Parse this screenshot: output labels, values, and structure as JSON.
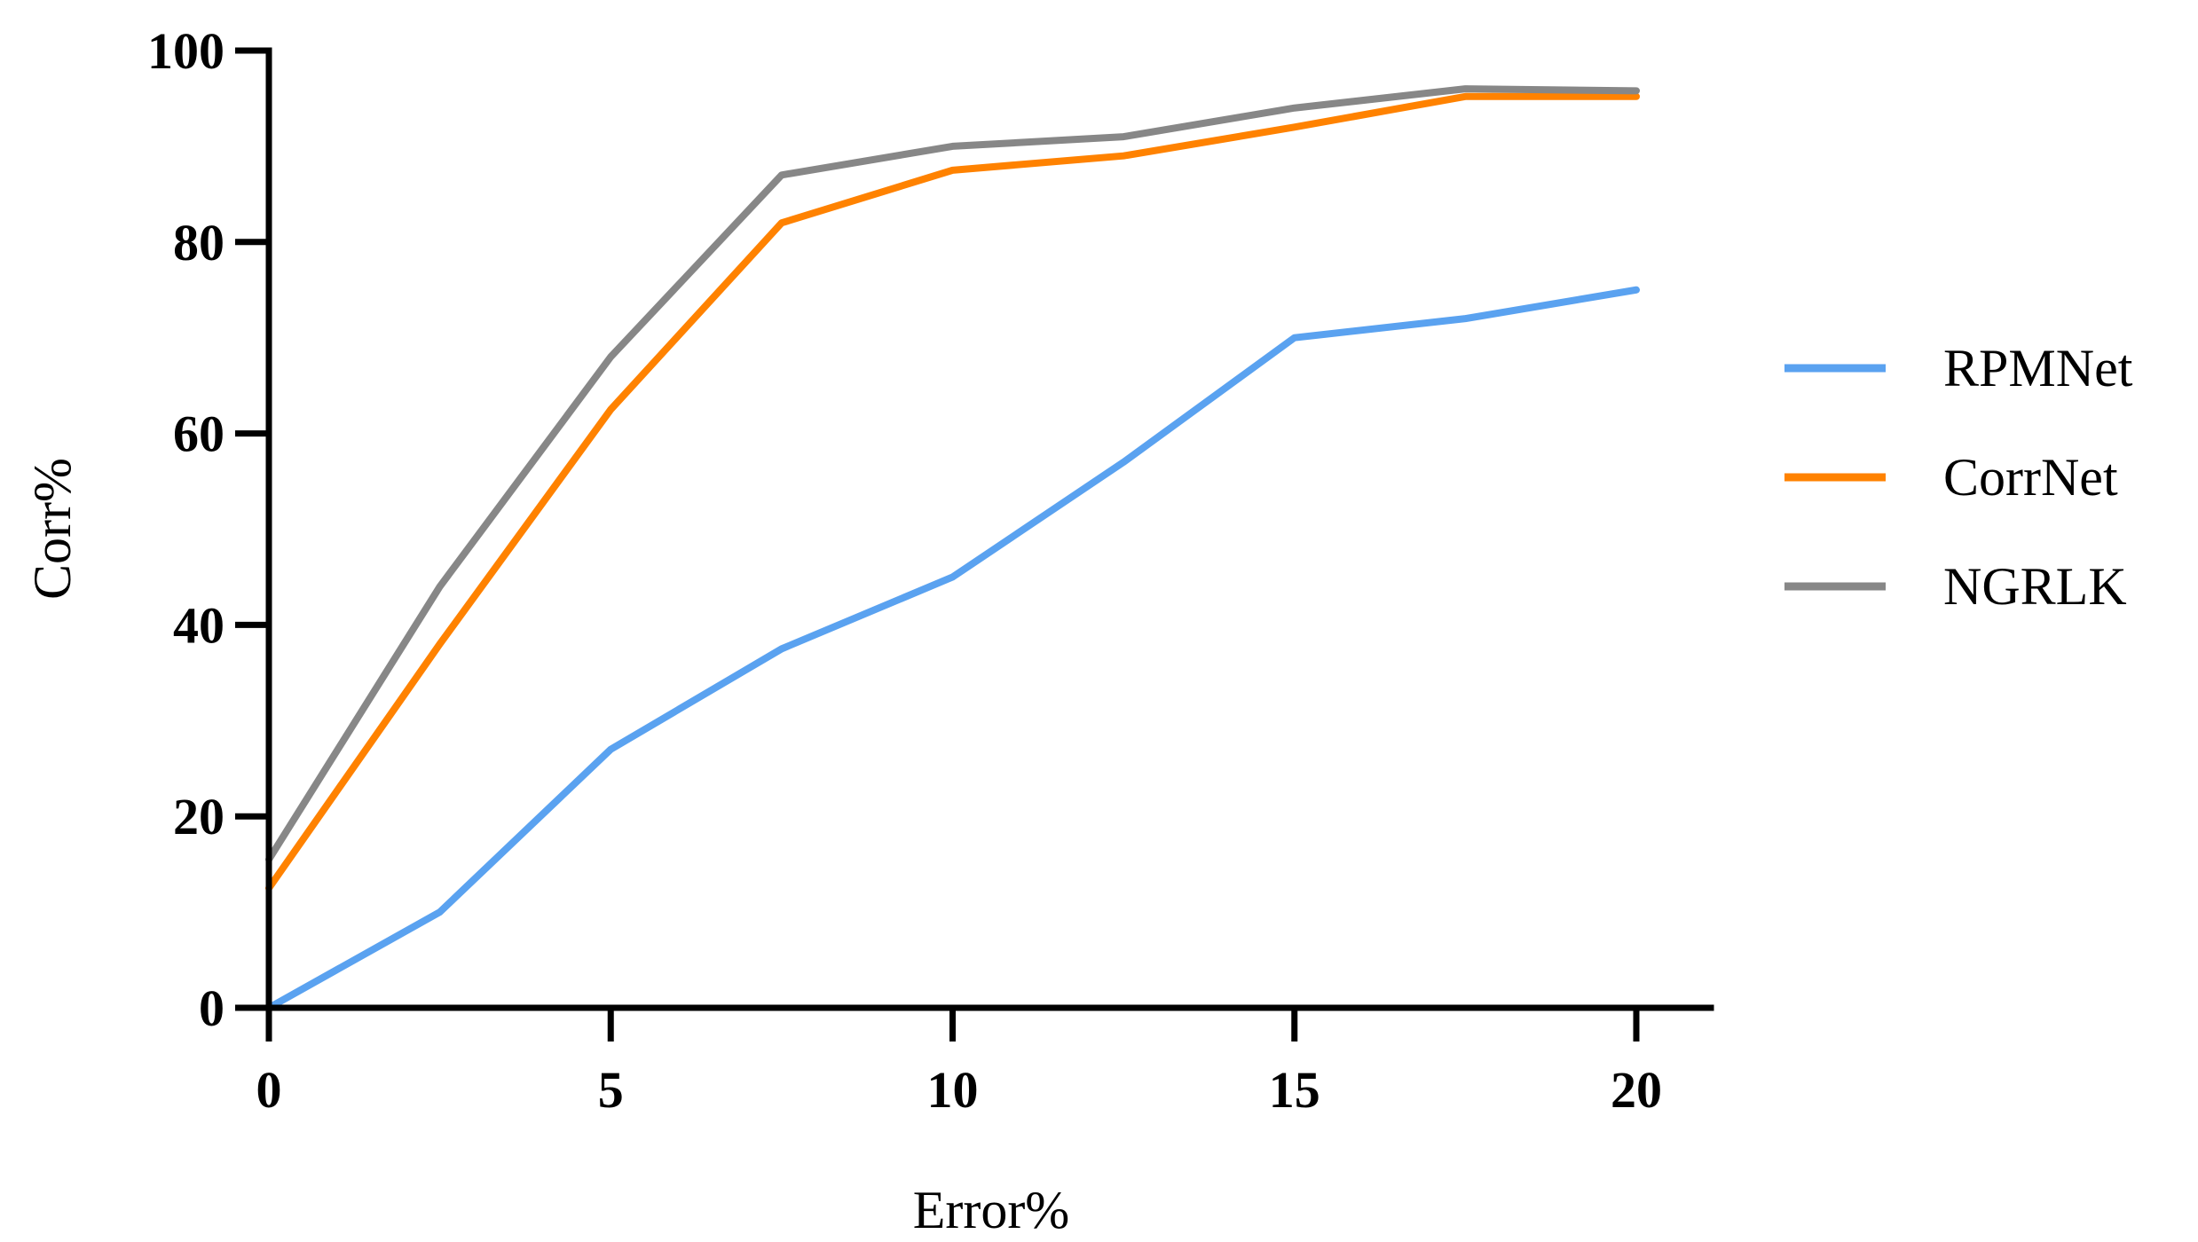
{
  "chart_data": {
    "type": "line",
    "title": "",
    "xlabel": "Error%",
    "ylabel": "Corr%",
    "xlim": [
      0,
      20
    ],
    "ylim": [
      0,
      100
    ],
    "xticks": [
      "0",
      "5",
      "10",
      "15",
      "20"
    ],
    "yticks": [
      "0",
      "20",
      "40",
      "60",
      "80",
      "100"
    ],
    "x": [
      0,
      2.5,
      5,
      7.5,
      10,
      12.5,
      15,
      17.5,
      20
    ],
    "grid": false,
    "legend_position": "right",
    "series": [
      {
        "name": "RPMNet",
        "color": "#5aa2f0",
        "values": [
          0,
          10,
          27,
          37.5,
          45,
          57,
          70,
          72,
          75
        ]
      },
      {
        "name": "CorrNet",
        "color": "#ff8200",
        "values": [
          12.5,
          38,
          62.5,
          82,
          87.5,
          89,
          92,
          95.2,
          95.2
        ]
      },
      {
        "name": "NGRLK",
        "color": "#878787",
        "values": [
          15.5,
          44,
          68,
          87,
          90,
          91,
          94,
          96,
          95.8
        ]
      }
    ]
  }
}
